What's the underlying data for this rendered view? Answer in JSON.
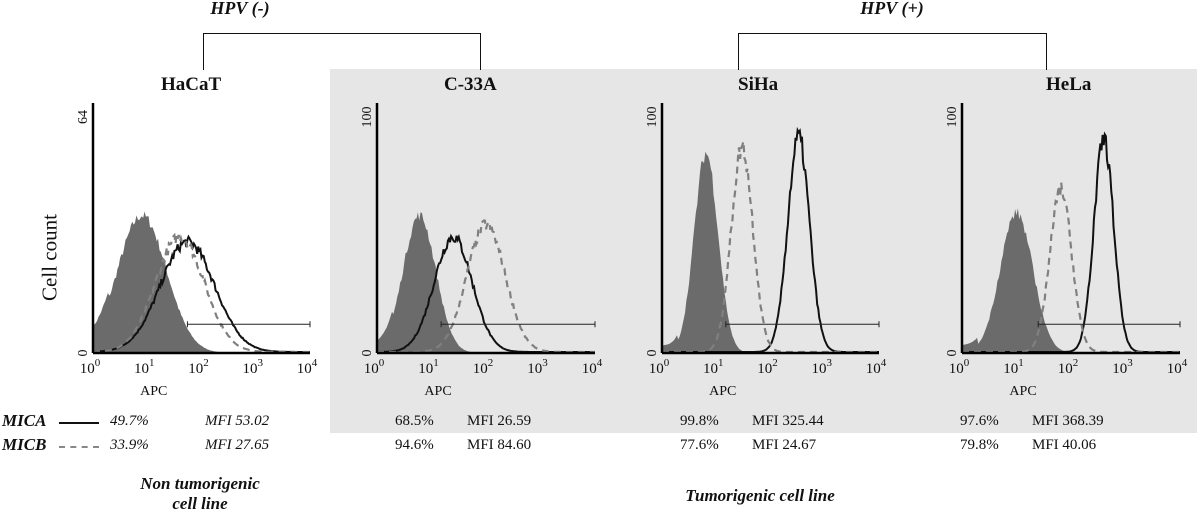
{
  "groups": [
    {
      "label": "HPV (-)",
      "members": [
        "HaCaT",
        "C-33A"
      ]
    },
    {
      "label": "HPV (+)",
      "members": [
        "SiHa",
        "HeLa"
      ]
    }
  ],
  "ylabel": "Cell count",
  "legend": [
    {
      "name": "MICA",
      "style": "solid",
      "color": "#111111"
    },
    {
      "name": "MICB",
      "style": "dashed",
      "color": "#808080"
    }
  ],
  "captions": {
    "non_tumorigenic_line1": "Non tumorigenic",
    "non_tumorigenic_line2": "cell line",
    "tumorigenic": "Tumorigenic cell line"
  },
  "colors": {
    "background_highlight": "#e6e6e6",
    "isotype_fill": "#6b6b6b",
    "mica": "#111111",
    "micb": "#808080"
  },
  "chart_data": [
    {
      "type": "area",
      "title": "HaCaT",
      "xlabel": "APC",
      "ylabel": "Cell count",
      "xscale": "log",
      "xlim": [
        1,
        10000
      ],
      "ylim": [
        0,
        64
      ],
      "xticks": [
        "10^0",
        "10^1",
        "10^2",
        "10^3",
        "10^4"
      ],
      "yticks": [
        "0",
        "64"
      ],
      "gate_start": 55,
      "gate_end": 10000,
      "series": [
        {
          "name": "Isotype control",
          "style": "filled",
          "peak_x": 8,
          "peak_pct": 55,
          "width_decades": 0.45
        },
        {
          "name": "MICA",
          "style": "solid",
          "peak_x": 55,
          "peak_pct": 44,
          "width_decades": 0.5,
          "percent": "49.7%",
          "mfi": "MFI 53.02"
        },
        {
          "name": "MICB",
          "style": "dashed",
          "peak_x": 40,
          "peak_pct": 46,
          "width_decades": 0.45,
          "percent": "33.9%",
          "mfi": "MFI 27.65"
        }
      ],
      "stats_italic": true
    },
    {
      "type": "area",
      "title": "C-33A",
      "xlabel": "APC",
      "ylabel": "",
      "xscale": "log",
      "xlim": [
        1,
        10000
      ],
      "ylim": [
        0,
        100
      ],
      "xticks": [
        "10^0",
        "10^1",
        "10^2",
        "10^3",
        "10^4"
      ],
      "yticks": [
        "0",
        "100"
      ],
      "gate_start": 15,
      "gate_end": 10000,
      "series": [
        {
          "name": "Isotype control",
          "style": "filled",
          "peak_x": 6,
          "peak_pct": 55,
          "width_decades": 0.3
        },
        {
          "name": "MICA",
          "style": "solid",
          "peak_x": 25,
          "peak_pct": 46,
          "width_decades": 0.35,
          "percent": "68.5%",
          "mfi": "MFI 26.59"
        },
        {
          "name": "MICB",
          "style": "dashed",
          "peak_x": 100,
          "peak_pct": 51,
          "width_decades": 0.35,
          "percent": "94.6%",
          "mfi": "MFI 84.60"
        }
      ],
      "stats_italic": false
    },
    {
      "type": "area",
      "title": "SiHa",
      "xlabel": "APC",
      "ylabel": "",
      "xscale": "log",
      "xlim": [
        1,
        10000
      ],
      "ylim": [
        0,
        100
      ],
      "xticks": [
        "10^0",
        "10^1",
        "10^2",
        "10^3",
        "10^4"
      ],
      "yticks": [
        "0",
        "100"
      ],
      "gate_start": 15,
      "gate_end": 10000,
      "series": [
        {
          "name": "Isotype control",
          "style": "filled",
          "peak_x": 6.5,
          "peak_pct": 80,
          "width_decades": 0.22
        },
        {
          "name": "MICA",
          "style": "solid",
          "peak_x": 330,
          "peak_pct": 86,
          "width_decades": 0.2,
          "percent": "99.8%",
          "mfi": "MFI 325.44"
        },
        {
          "name": "MICB",
          "style": "dashed",
          "peak_x": 30,
          "peak_pct": 82,
          "width_decades": 0.2,
          "percent": "77.6%",
          "mfi": "MFI 24.67"
        }
      ],
      "stats_italic": false
    },
    {
      "type": "area",
      "title": "HeLa",
      "xlabel": "APC",
      "ylabel": "",
      "xscale": "log",
      "xlim": [
        1,
        10000
      ],
      "ylim": [
        0,
        100
      ],
      "xticks": [
        "10^0",
        "10^1",
        "10^2",
        "10^3",
        "10^4"
      ],
      "yticks": [
        "0",
        "100"
      ],
      "gate_start": 25,
      "gate_end": 10000,
      "series": [
        {
          "name": "Isotype control",
          "style": "filled",
          "peak_x": 10,
          "peak_pct": 56,
          "width_decades": 0.3
        },
        {
          "name": "MICA",
          "style": "solid",
          "peak_x": 400,
          "peak_pct": 85,
          "width_decades": 0.18,
          "percent": "97.6%",
          "mfi": "MFI 368.39"
        },
        {
          "name": "MICB",
          "style": "dashed",
          "peak_x": 65,
          "peak_pct": 65,
          "width_decades": 0.2,
          "percent": "79.8%",
          "mfi": "MFI 40.06"
        }
      ],
      "stats_italic": false
    }
  ]
}
